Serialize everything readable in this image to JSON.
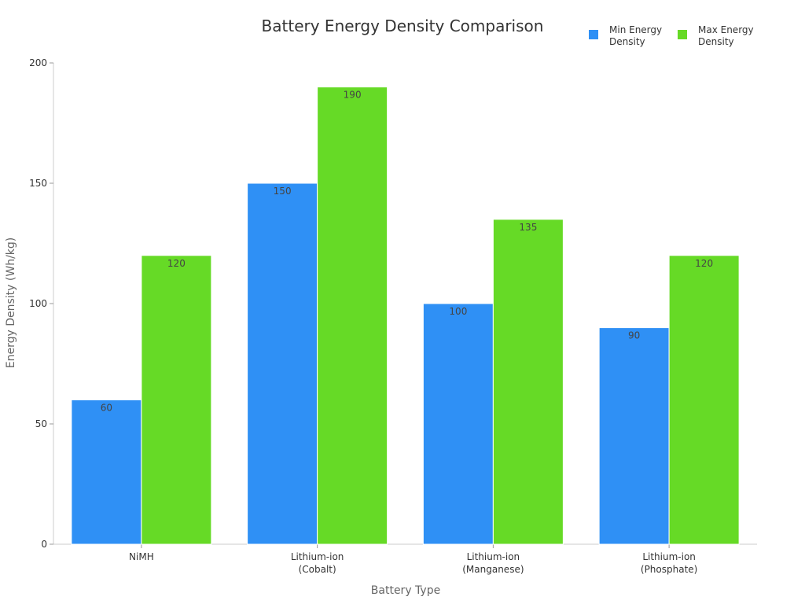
{
  "chart_data": {
    "type": "bar",
    "title": "Battery Energy Density Comparison",
    "xlabel": "Battery Type",
    "ylabel": "Energy Density (Wh/kg)",
    "ylim": [
      0,
      200
    ],
    "yticks": [
      0,
      50,
      100,
      150,
      200
    ],
    "categories": [
      [
        "NiMH"
      ],
      [
        "Lithium-ion",
        "(Cobalt)"
      ],
      [
        "Lithium-ion",
        "(Manganese)"
      ],
      [
        "Lithium-ion",
        "(Phosphate)"
      ]
    ],
    "series": [
      {
        "name": [
          "Min Energy",
          "Density"
        ],
        "color": "#2f90f5",
        "values": [
          60,
          150,
          100,
          90
        ]
      },
      {
        "name": [
          "Max Energy",
          "Density"
        ],
        "color": "#66da26",
        "values": [
          120,
          190,
          135,
          120
        ]
      }
    ],
    "grid": false,
    "legend": "top-right"
  }
}
